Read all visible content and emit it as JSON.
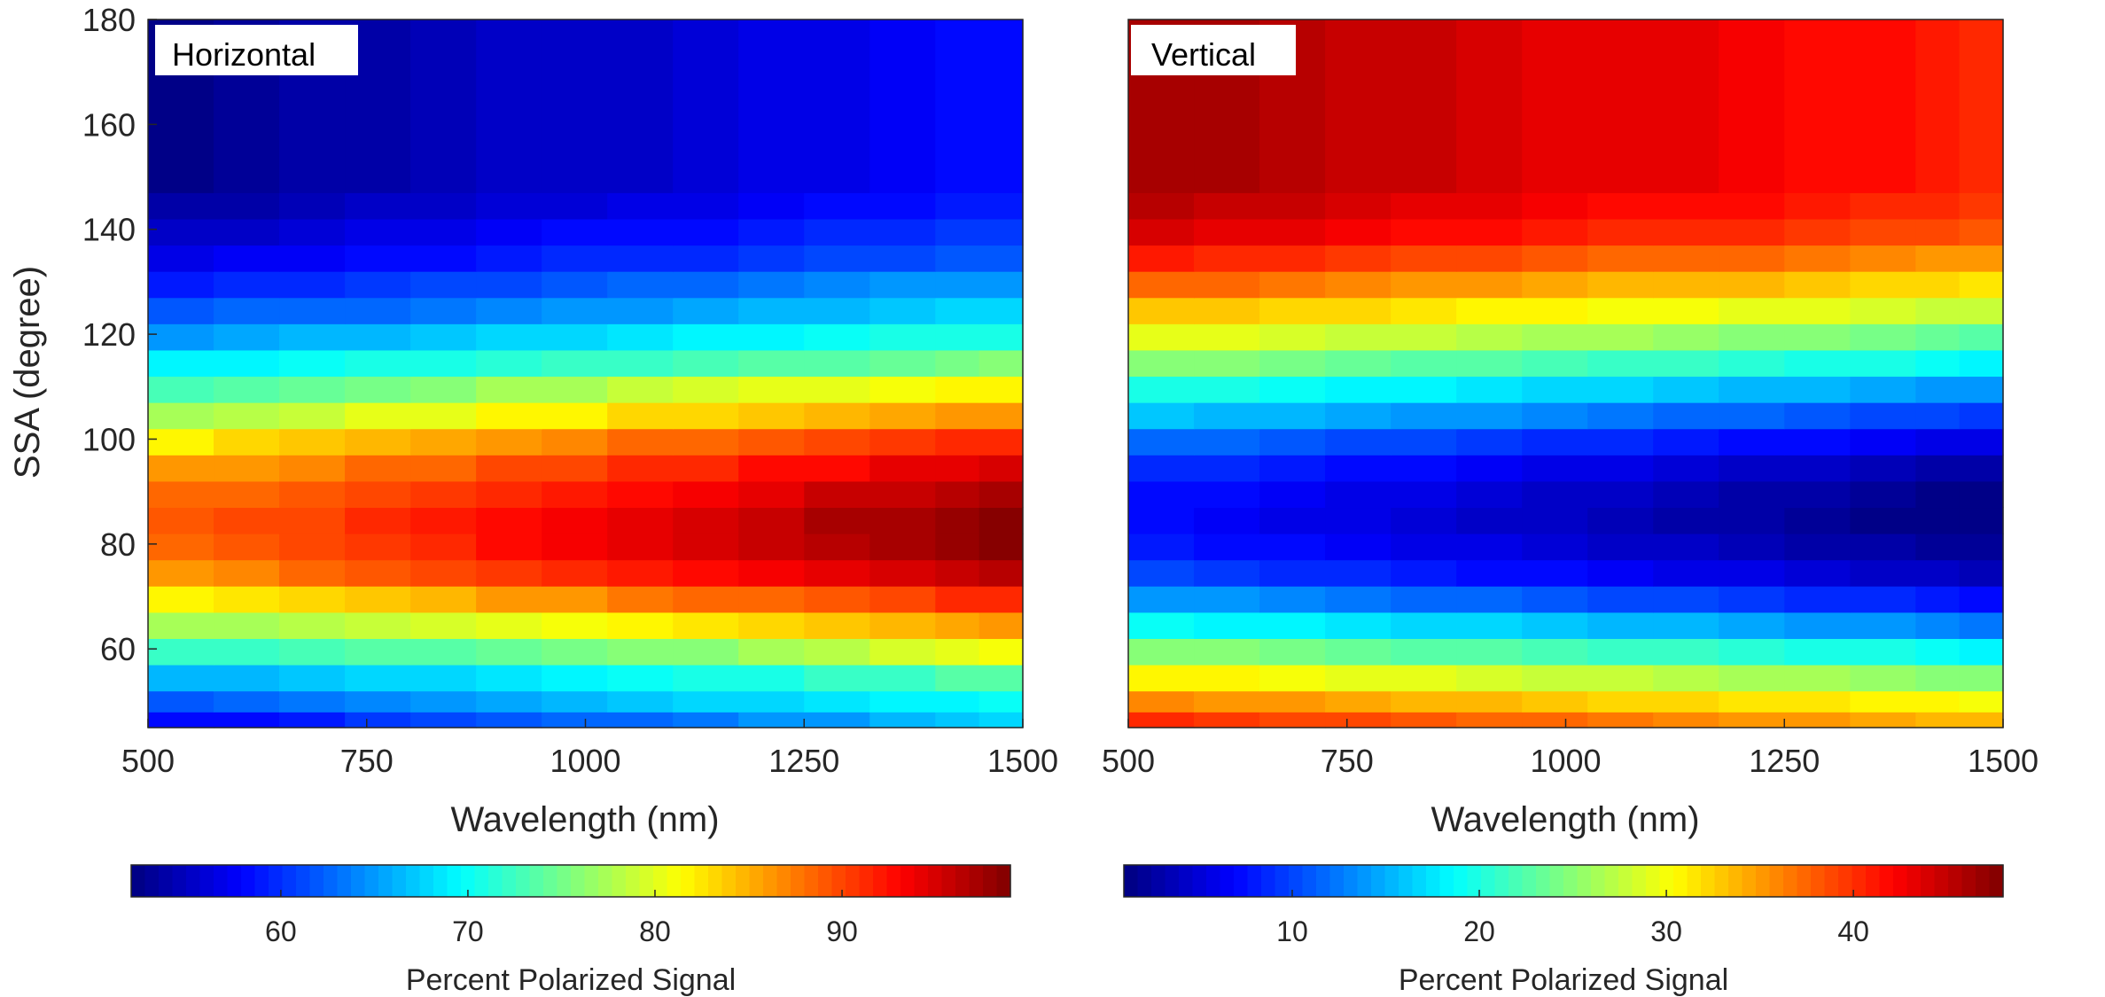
{
  "figure": {
    "ylabel": "SSA (degree)",
    "colormap": "jet",
    "colormap_stops": [
      "#00007f",
      "#0000ff",
      "#007fff",
      "#00ffff",
      "#7fff7f",
      "#ffff00",
      "#ff7f00",
      "#ff0000",
      "#7f0000"
    ]
  },
  "chart_data": [
    {
      "type": "heatmap",
      "panel_label": "Horizontal",
      "xlabel": "Wavelength (nm)",
      "ylabel": "SSA (degree)",
      "xlim": [
        500,
        1500
      ],
      "ylim": [
        45,
        180
      ],
      "xticks": [
        "500",
        "750",
        "1000",
        "1250",
        "1500"
      ],
      "yticks": [
        "60",
        "80",
        "100",
        "120",
        "140",
        "160",
        "180"
      ],
      "x_edges": [
        500,
        575,
        650,
        725,
        800,
        875,
        950,
        1025,
        1100,
        1175,
        1250,
        1325,
        1400,
        1450,
        1500
      ],
      "y_edges": [
        45,
        48,
        52,
        57,
        62,
        67,
        72,
        77,
        82,
        87,
        92,
        97,
        102,
        107,
        112,
        117,
        122,
        127,
        132,
        137,
        142,
        147,
        180
      ],
      "z_description": "Percent polarized signal per cell; rows ordered from low SSA to high SSA",
      "values": [
        [
          58.0,
          58.5,
          59.0,
          60.5,
          61.0,
          62.0,
          62.5,
          63.0,
          63.5,
          64.5,
          65.0,
          66.0,
          67.0,
          67.5
        ],
        [
          62.0,
          63.0,
          63.5,
          64.0,
          65.0,
          65.5,
          66.5,
          67.0,
          67.5,
          68.0,
          68.5,
          69.0,
          69.5,
          70.0
        ],
        [
          66.0,
          66.5,
          67.0,
          67.5,
          68.0,
          68.5,
          69.0,
          70.0,
          70.5,
          71.0,
          72.0,
          72.5,
          73.5,
          74.0
        ],
        [
          72.0,
          72.5,
          73.0,
          73.5,
          74.0,
          74.5,
          75.0,
          75.5,
          76.0,
          77.0,
          78.0,
          79.5,
          80.5,
          81.0
        ],
        [
          77.0,
          77.5,
          78.0,
          79.0,
          79.5,
          80.5,
          81.0,
          82.0,
          82.5,
          83.0,
          84.0,
          85.0,
          85.5,
          86.0
        ],
        [
          82.0,
          82.5,
          83.0,
          84.0,
          85.0,
          86.0,
          86.5,
          87.5,
          88.0,
          88.5,
          89.0,
          90.0,
          91.0,
          91.5
        ],
        [
          86.0,
          87.0,
          88.0,
          89.0,
          89.5,
          90.5,
          91.5,
          92.0,
          93.0,
          93.5,
          94.0,
          95.0,
          96.0,
          96.5
        ],
        [
          88.0,
          89.0,
          90.0,
          90.5,
          91.5,
          92.5,
          93.5,
          94.0,
          95.0,
          95.5,
          96.5,
          97.5,
          98.0,
          98.5
        ],
        [
          89.0,
          89.5,
          90.0,
          91.0,
          92.0,
          93.0,
          93.5,
          94.5,
          95.0,
          96.0,
          97.0,
          97.5,
          98.0,
          98.5
        ],
        [
          88.0,
          88.5,
          89.0,
          90.0,
          90.5,
          91.5,
          92.0,
          93.0,
          93.5,
          94.5,
          95.5,
          96.0,
          96.5,
          97.0
        ],
        [
          86.0,
          86.5,
          87.0,
          88.0,
          88.5,
          89.5,
          90.0,
          91.0,
          91.5,
          92.5,
          93.0,
          94.0,
          94.5,
          95.0
        ],
        [
          82.0,
          83.0,
          84.0,
          85.0,
          85.5,
          86.5,
          87.0,
          88.0,
          88.5,
          89.0,
          90.0,
          90.5,
          91.0,
          91.5
        ],
        [
          77.0,
          78.0,
          79.0,
          80.0,
          80.5,
          81.5,
          82.0,
          83.0,
          83.5,
          84.0,
          85.0,
          85.5,
          86.0,
          86.5
        ],
        [
          73.0,
          73.5,
          74.5,
          75.0,
          76.0,
          77.0,
          77.5,
          78.5,
          79.5,
          80.0,
          80.5,
          81.0,
          81.5,
          82.0
        ],
        [
          69.0,
          69.5,
          70.0,
          70.5,
          71.0,
          71.5,
          72.0,
          72.5,
          73.0,
          73.5,
          74.0,
          74.5,
          75.0,
          75.5
        ],
        [
          65.0,
          65.5,
          66.0,
          66.5,
          67.0,
          67.5,
          68.0,
          68.5,
          69.0,
          69.5,
          70.0,
          70.5,
          71.0,
          71.0
        ],
        [
          62.0,
          62.5,
          63.0,
          63.0,
          63.5,
          64.0,
          64.5,
          65.0,
          65.5,
          66.0,
          66.5,
          67.0,
          67.5,
          68.0
        ],
        [
          59.0,
          59.5,
          60.0,
          60.5,
          61.0,
          61.5,
          62.0,
          62.5,
          63.0,
          63.5,
          64.0,
          64.5,
          65.0,
          65.0
        ],
        [
          57.0,
          57.5,
          57.5,
          58.0,
          58.5,
          59.0,
          59.5,
          60.0,
          60.0,
          60.5,
          61.0,
          61.5,
          62.0,
          62.0
        ],
        [
          55.0,
          55.5,
          56.0,
          56.5,
          57.0,
          57.5,
          58.0,
          58.0,
          58.5,
          59.0,
          59.5,
          60.0,
          60.5,
          60.5
        ],
        [
          53.5,
          54.0,
          54.5,
          55.0,
          55.5,
          56.0,
          56.0,
          56.5,
          57.0,
          57.5,
          58.0,
          58.5,
          59.0,
          59.0
        ],
        [
          52.5,
          53.0,
          53.5,
          54.0,
          54.5,
          55.0,
          55.5,
          55.5,
          56.0,
          56.5,
          57.0,
          57.5,
          58.0,
          58.0
        ]
      ],
      "colorbar": {
        "label": "Percent Polarized Signal",
        "range": [
          52,
          99
        ],
        "ticks": [
          "60",
          "70",
          "80",
          "90"
        ],
        "tick_values": [
          60,
          70,
          80,
          90
        ],
        "levels": 64
      }
    },
    {
      "type": "heatmap",
      "panel_label": "Vertical",
      "xlabel": "Wavelength (nm)",
      "ylabel": "",
      "xlim": [
        500,
        1500
      ],
      "ylim": [
        45,
        180
      ],
      "xticks": [
        "500",
        "750",
        "1000",
        "1250",
        "1500"
      ],
      "yticks": [],
      "x_edges": [
        500,
        575,
        650,
        725,
        800,
        875,
        950,
        1025,
        1100,
        1175,
        1250,
        1325,
        1400,
        1450,
        1500
      ],
      "y_edges": [
        45,
        48,
        52,
        57,
        62,
        67,
        72,
        77,
        82,
        87,
        92,
        97,
        102,
        107,
        112,
        117,
        122,
        127,
        132,
        137,
        142,
        147,
        180
      ],
      "z_description": "Percent polarized signal per cell; rows ordered from low SSA to high SSA",
      "values": [
        [
          40.0,
          39.5,
          39.0,
          38.5,
          38.0,
          37.5,
          37.0,
          36.5,
          36.0,
          35.5,
          35.0,
          34.5,
          34.0,
          33.5
        ],
        [
          36.0,
          35.5,
          35.0,
          34.5,
          34.0,
          33.5,
          33.0,
          32.5,
          32.0,
          31.5,
          31.5,
          31.0,
          30.5,
          30.0
        ],
        [
          31.0,
          30.5,
          30.0,
          29.5,
          29.0,
          28.5,
          28.0,
          27.5,
          27.0,
          26.5,
          26.0,
          25.5,
          25.0,
          24.5
        ],
        [
          25.0,
          24.5,
          24.0,
          23.5,
          23.0,
          22.5,
          22.0,
          21.5,
          21.0,
          20.5,
          20.0,
          19.5,
          19.0,
          18.5
        ],
        [
          19.0,
          18.5,
          18.0,
          17.5,
          17.0,
          16.5,
          16.0,
          15.5,
          15.0,
          14.5,
          14.0,
          13.5,
          13.0,
          12.5
        ],
        [
          14.0,
          13.5,
          13.0,
          12.5,
          12.0,
          11.5,
          11.0,
          10.5,
          10.0,
          9.5,
          9.0,
          8.5,
          8.0,
          7.5
        ],
        [
          10.0,
          9.5,
          9.0,
          8.5,
          8.0,
          7.5,
          7.0,
          6.5,
          6.0,
          5.5,
          5.0,
          4.5,
          4.0,
          3.5
        ],
        [
          8.0,
          7.5,
          7.0,
          6.5,
          6.0,
          5.5,
          5.0,
          4.5,
          4.0,
          3.5,
          3.0,
          2.5,
          2.0,
          1.8
        ],
        [
          7.0,
          6.5,
          6.0,
          5.5,
          5.0,
          4.5,
          4.0,
          3.5,
          3.0,
          2.5,
          2.0,
          1.5,
          1.2,
          1.0
        ],
        [
          7.5,
          7.0,
          6.5,
          6.0,
          5.5,
          5.0,
          4.5,
          4.0,
          3.5,
          3.0,
          2.5,
          2.0,
          1.5,
          1.2
        ],
        [
          9.0,
          8.5,
          8.0,
          7.5,
          7.0,
          6.5,
          6.0,
          5.5,
          5.0,
          4.5,
          4.0,
          3.5,
          3.0,
          2.5
        ],
        [
          12.0,
          11.5,
          11.0,
          10.5,
          10.0,
          9.5,
          9.0,
          8.5,
          8.0,
          7.5,
          7.0,
          6.5,
          6.0,
          5.5
        ],
        [
          16.0,
          15.5,
          15.0,
          14.5,
          14.0,
          13.5,
          13.0,
          12.5,
          12.0,
          11.5,
          11.0,
          10.5,
          10.0,
          9.5
        ],
        [
          20.0,
          19.5,
          19.0,
          18.5,
          18.0,
          17.5,
          17.0,
          16.5,
          16.0,
          15.5,
          15.0,
          14.5,
          14.0,
          13.5
        ],
        [
          25.0,
          24.5,
          24.0,
          23.5,
          23.0,
          22.5,
          22.0,
          21.5,
          21.0,
          20.5,
          20.0,
          19.5,
          19.0,
          18.5
        ],
        [
          29.0,
          29.0,
          28.5,
          28.0,
          27.5,
          27.0,
          26.5,
          26.0,
          25.5,
          25.0,
          24.5,
          24.0,
          23.5,
          23.0
        ],
        [
          33.0,
          33.0,
          32.5,
          32.0,
          31.5,
          31.0,
          30.5,
          30.0,
          30.0,
          29.5,
          29.0,
          28.5,
          28.0,
          27.5
        ],
        [
          37.0,
          37.0,
          36.5,
          36.0,
          35.5,
          35.0,
          34.5,
          34.0,
          34.0,
          33.5,
          33.0,
          32.5,
          32.0,
          31.5
        ],
        [
          41.0,
          40.5,
          40.0,
          39.5,
          39.0,
          38.5,
          38.0,
          37.5,
          37.5,
          37.0,
          36.5,
          36.0,
          35.5,
          35.0
        ],
        [
          44.0,
          43.5,
          43.0,
          42.5,
          42.0,
          41.5,
          41.0,
          40.5,
          40.5,
          40.0,
          39.5,
          39.0,
          38.5,
          38.0
        ],
        [
          45.5,
          45.0,
          44.5,
          44.0,
          43.5,
          43.0,
          42.5,
          42.0,
          42.0,
          41.5,
          41.0,
          40.5,
          40.0,
          39.5
        ],
        [
          46.5,
          46.0,
          45.5,
          45.0,
          44.5,
          44.0,
          43.5,
          43.0,
          43.0,
          42.5,
          42.0,
          41.5,
          41.0,
          40.5
        ]
      ],
      "colorbar": {
        "label": "Percent Polarized Signal",
        "range": [
          1,
          48
        ],
        "ticks": [
          "10",
          "20",
          "30",
          "40"
        ],
        "tick_values": [
          10,
          20,
          30,
          40
        ],
        "levels": 64
      }
    }
  ]
}
